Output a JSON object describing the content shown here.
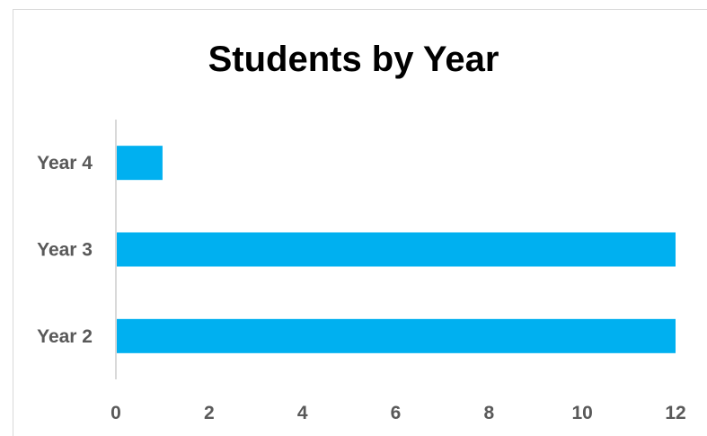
{
  "chart_data": {
    "type": "bar",
    "orientation": "horizontal",
    "title": "Students by Year",
    "xlabel": "",
    "ylabel": "",
    "categories": [
      "Year 2",
      "Year 3",
      "Year 4"
    ],
    "values": [
      12,
      12,
      1
    ],
    "xlim": [
      0,
      12
    ],
    "xticks": [
      "0",
      "2",
      "4",
      "6",
      "8",
      "10",
      "12"
    ],
    "grid": false,
    "legend": "none",
    "bar_color": "#00B0F0",
    "axis_color": "#d9d9d9",
    "label_color": "#595959"
  }
}
